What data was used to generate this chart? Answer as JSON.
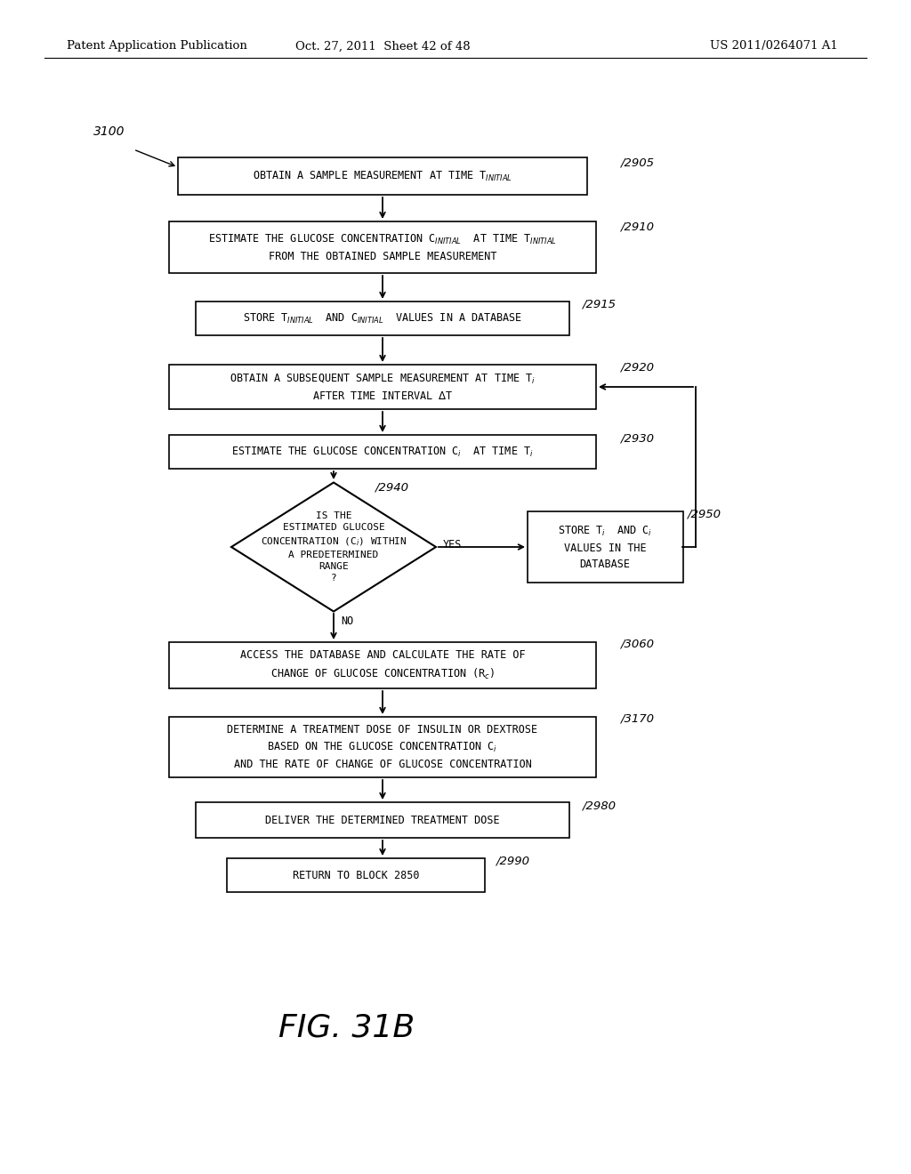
{
  "header_left": "Patent Application Publication",
  "header_mid": "Oct. 27, 2011  Sheet 42 of 48",
  "header_right": "US 2011/0264071 A1",
  "fig_label": "FIG. 31B",
  "background_color": "#ffffff"
}
